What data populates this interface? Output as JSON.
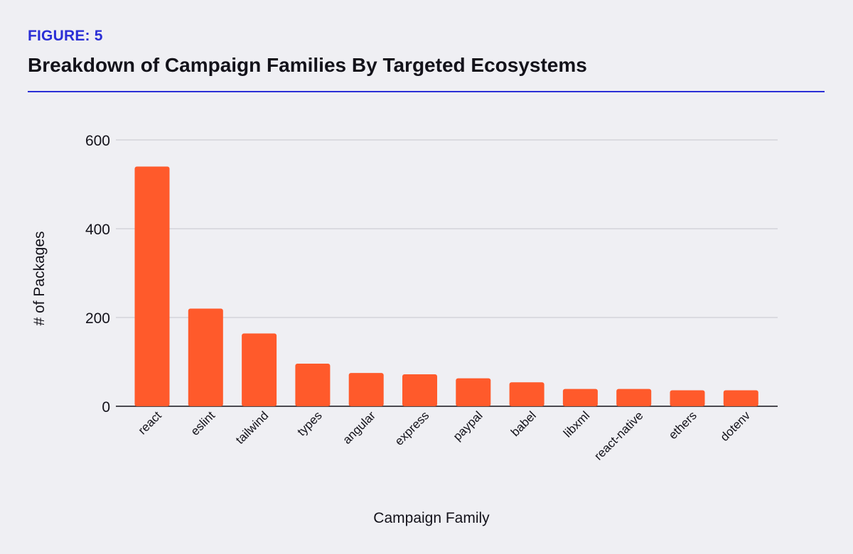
{
  "figure": {
    "label": "FIGURE: 5",
    "title": "Breakdown of Campaign Families By Targeted Ecosystems",
    "accent_color": "#2b2fd6"
  },
  "chart_data": {
    "type": "bar",
    "categories": [
      "react",
      "eslint",
      "tailwind",
      "types",
      "angular",
      "express",
      "paypal",
      "babel",
      "libxml",
      "react-native",
      "ethers",
      "dotenv"
    ],
    "values": [
      540,
      220,
      164,
      96,
      75,
      72,
      63,
      54,
      39,
      39,
      36,
      36
    ],
    "xlabel": "Campaign Family",
    "ylabel": "# of Packages",
    "ylim": [
      0,
      600
    ],
    "yticks": [
      0,
      200,
      400,
      600
    ],
    "grid": true,
    "bar_color": "#ff5a2b"
  }
}
